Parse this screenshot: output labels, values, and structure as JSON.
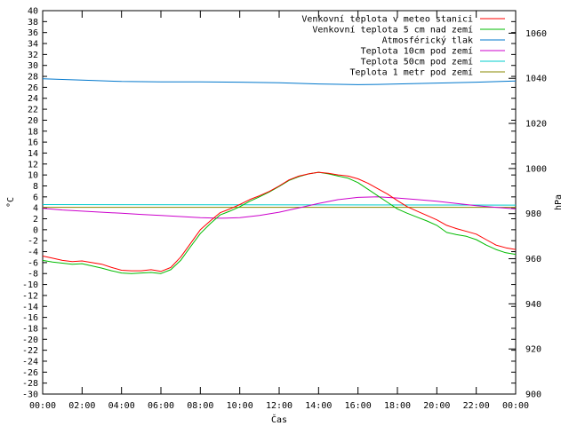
{
  "chart_data": {
    "type": "line",
    "xlabel": "Čas",
    "ylabel_left": "°C",
    "ylabel_right": "hPa",
    "ylim_left": [
      -30,
      40
    ],
    "ylim_right": [
      900,
      1070
    ],
    "xlim_hours": [
      0,
      24
    ],
    "x_ticks": [
      "00:00",
      "02:00",
      "04:00",
      "06:00",
      "08:00",
      "10:00",
      "12:00",
      "14:00",
      "16:00",
      "18:00",
      "20:00",
      "22:00",
      "00:00"
    ],
    "y_ticks_left": [
      40,
      38,
      36,
      34,
      32,
      30,
      28,
      26,
      24,
      22,
      20,
      18,
      16,
      14,
      12,
      10,
      8,
      6,
      4,
      2,
      0,
      -2,
      -4,
      -6,
      -8,
      -10,
      -12,
      -14,
      -16,
      -18,
      -20,
      -22,
      -24,
      -26,
      -28,
      -30
    ],
    "y_ticks_right": [
      1060,
      1040,
      1020,
      1000,
      980,
      960,
      940,
      920,
      900
    ],
    "legend_position": "top-right",
    "grid": false,
    "series": [
      {
        "name": "Venkovní teplota v meteo stanici",
        "color": "#ff0000",
        "axis": "left",
        "x": [
          0,
          0.5,
          1,
          1.5,
          2,
          2.5,
          3,
          3.5,
          4,
          4.5,
          5,
          5.5,
          6,
          6.5,
          7,
          7.5,
          8,
          8.5,
          9,
          9.5,
          10,
          10.5,
          11,
          11.5,
          12,
          12.5,
          13,
          13.5,
          14,
          14.5,
          15,
          15.5,
          16,
          16.5,
          17,
          17.5,
          18,
          18.5,
          19,
          19.5,
          20,
          20.5,
          21,
          21.5,
          22,
          22.5,
          23,
          23.5,
          24
        ],
        "values": [
          -4.8,
          -5.2,
          -5.6,
          -5.8,
          -5.7,
          -6.0,
          -6.3,
          -6.9,
          -7.4,
          -7.5,
          -7.5,
          -7.3,
          -7.6,
          -6.9,
          -5.0,
          -2.5,
          0.0,
          1.6,
          3.1,
          3.8,
          4.6,
          5.5,
          6.2,
          7.0,
          8.0,
          9.1,
          9.8,
          10.2,
          10.5,
          10.3,
          10.0,
          9.8,
          9.3,
          8.5,
          7.5,
          6.5,
          5.3,
          4.2,
          3.4,
          2.6,
          1.8,
          0.8,
          0.2,
          -0.3,
          -0.8,
          -1.8,
          -2.8,
          -3.3,
          -3.6
        ]
      },
      {
        "name": "Venkovní teplota 5 cm nad zemí",
        "color": "#00bb00",
        "axis": "left",
        "x": [
          0,
          0.5,
          1,
          1.5,
          2,
          2.5,
          3,
          3.5,
          4,
          4.5,
          5,
          5.5,
          6,
          6.5,
          7,
          7.5,
          8,
          8.5,
          9,
          9.5,
          10,
          10.5,
          11,
          11.5,
          12,
          12.5,
          13,
          13.5,
          14,
          14.5,
          15,
          15.5,
          16,
          16.5,
          17,
          17.5,
          18,
          18.5,
          19,
          19.5,
          20,
          20.5,
          21,
          21.5,
          22,
          22.5,
          23,
          23.5,
          24
        ],
        "values": [
          -5.6,
          -5.9,
          -6.1,
          -6.3,
          -6.2,
          -6.6,
          -7.0,
          -7.5,
          -7.9,
          -8.0,
          -7.9,
          -7.8,
          -8.0,
          -7.3,
          -5.6,
          -3.1,
          -0.7,
          1.1,
          2.7,
          3.4,
          4.2,
          5.2,
          6.0,
          6.9,
          7.9,
          9.0,
          9.7,
          10.2,
          10.5,
          10.2,
          9.8,
          9.4,
          8.6,
          7.4,
          6.2,
          5.0,
          3.8,
          3.0,
          2.3,
          1.6,
          0.8,
          -0.5,
          -0.9,
          -1.2,
          -1.8,
          -2.8,
          -3.6,
          -4.2,
          -4.5
        ]
      },
      {
        "name": "Atmosférický tlak",
        "color": "#0077cc",
        "axis": "right",
        "x": [
          0,
          2,
          4,
          6,
          8,
          10,
          12,
          14,
          16,
          17,
          18,
          20,
          22,
          24
        ],
        "values": [
          1039.8,
          1039.2,
          1038.6,
          1038.4,
          1038.4,
          1038.3,
          1038.0,
          1037.5,
          1037.2,
          1037.3,
          1037.5,
          1037.9,
          1038.3,
          1038.8
        ]
      },
      {
        "name": "Teplota 10cm pod zemí",
        "color": "#cc00cc",
        "axis": "left",
        "x": [
          0,
          1,
          2,
          3,
          4,
          5,
          6,
          7,
          8,
          9,
          10,
          11,
          12,
          13,
          14,
          15,
          16,
          17,
          18,
          19,
          20,
          21,
          22,
          23,
          24
        ],
        "values": [
          3.9,
          3.6,
          3.4,
          3.2,
          3.0,
          2.8,
          2.6,
          2.4,
          2.2,
          2.1,
          2.2,
          2.6,
          3.2,
          4.0,
          4.8,
          5.5,
          5.9,
          6.0,
          5.8,
          5.5,
          5.2,
          4.8,
          4.4,
          4.1,
          3.8
        ]
      },
      {
        "name": "Teplota 50cm pod zemí",
        "color": "#00cccc",
        "axis": "left",
        "x": [
          0,
          24
        ],
        "values": [
          4.6,
          4.5
        ]
      },
      {
        "name": "Teplota 1 metr pod zemí",
        "color": "#888800",
        "axis": "left",
        "x": [
          0,
          24
        ],
        "values": [
          4.1,
          4.1
        ]
      }
    ]
  }
}
